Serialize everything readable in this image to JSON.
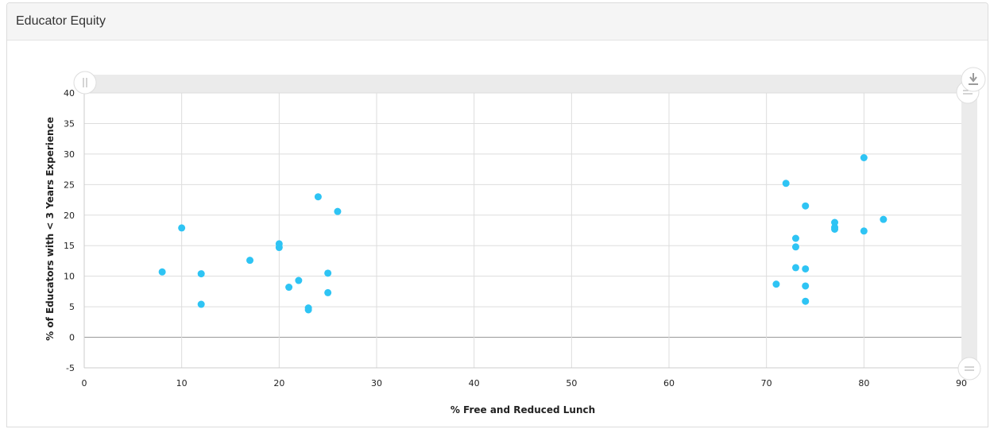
{
  "panel": {
    "title": "Educator Equity"
  },
  "icons": {
    "download": "download-icon",
    "top_handle": "scroll-handle-icon",
    "bottom_handle": "scroll-handle-icon",
    "left_handle": "scroll-handle-icon"
  },
  "colors": {
    "point": "#2ec4f4",
    "grid": "#dddddd",
    "navigator": "#ebebeb"
  },
  "chart_data": {
    "type": "scatter",
    "title": "",
    "xlabel": "% Free and Reduced Lunch",
    "ylabel": "% of Educators with < 3 Years Experience",
    "xlim": [
      0,
      90
    ],
    "ylim": [
      -5,
      40
    ],
    "xticks": [
      0,
      10,
      20,
      30,
      40,
      50,
      60,
      70,
      80,
      90
    ],
    "yticks": [
      -5,
      0,
      5,
      10,
      15,
      20,
      25,
      30,
      35,
      40
    ],
    "grid": true,
    "series": [
      {
        "points": [
          [
            8,
            10.7
          ],
          [
            10,
            17.9
          ],
          [
            12,
            10.4
          ],
          [
            12,
            5.4
          ],
          [
            17,
            12.6
          ],
          [
            20,
            15.3
          ],
          [
            20,
            14.7
          ],
          [
            21,
            8.2
          ],
          [
            22,
            9.3
          ],
          [
            23,
            4.8
          ],
          [
            23,
            4.5
          ],
          [
            24,
            23.0
          ],
          [
            25,
            10.5
          ],
          [
            25,
            7.3
          ],
          [
            26,
            20.6
          ],
          [
            71,
            8.7
          ],
          [
            72,
            25.2
          ],
          [
            73,
            16.2
          ],
          [
            73,
            14.8
          ],
          [
            73,
            11.4
          ],
          [
            74,
            21.5
          ],
          [
            74,
            11.2
          ],
          [
            74,
            8.4
          ],
          [
            74,
            5.9
          ],
          [
            77,
            18.8
          ],
          [
            77,
            18.0
          ],
          [
            77,
            17.7
          ],
          [
            80,
            29.4
          ],
          [
            80,
            17.4
          ],
          [
            82,
            19.3
          ]
        ]
      }
    ]
  }
}
